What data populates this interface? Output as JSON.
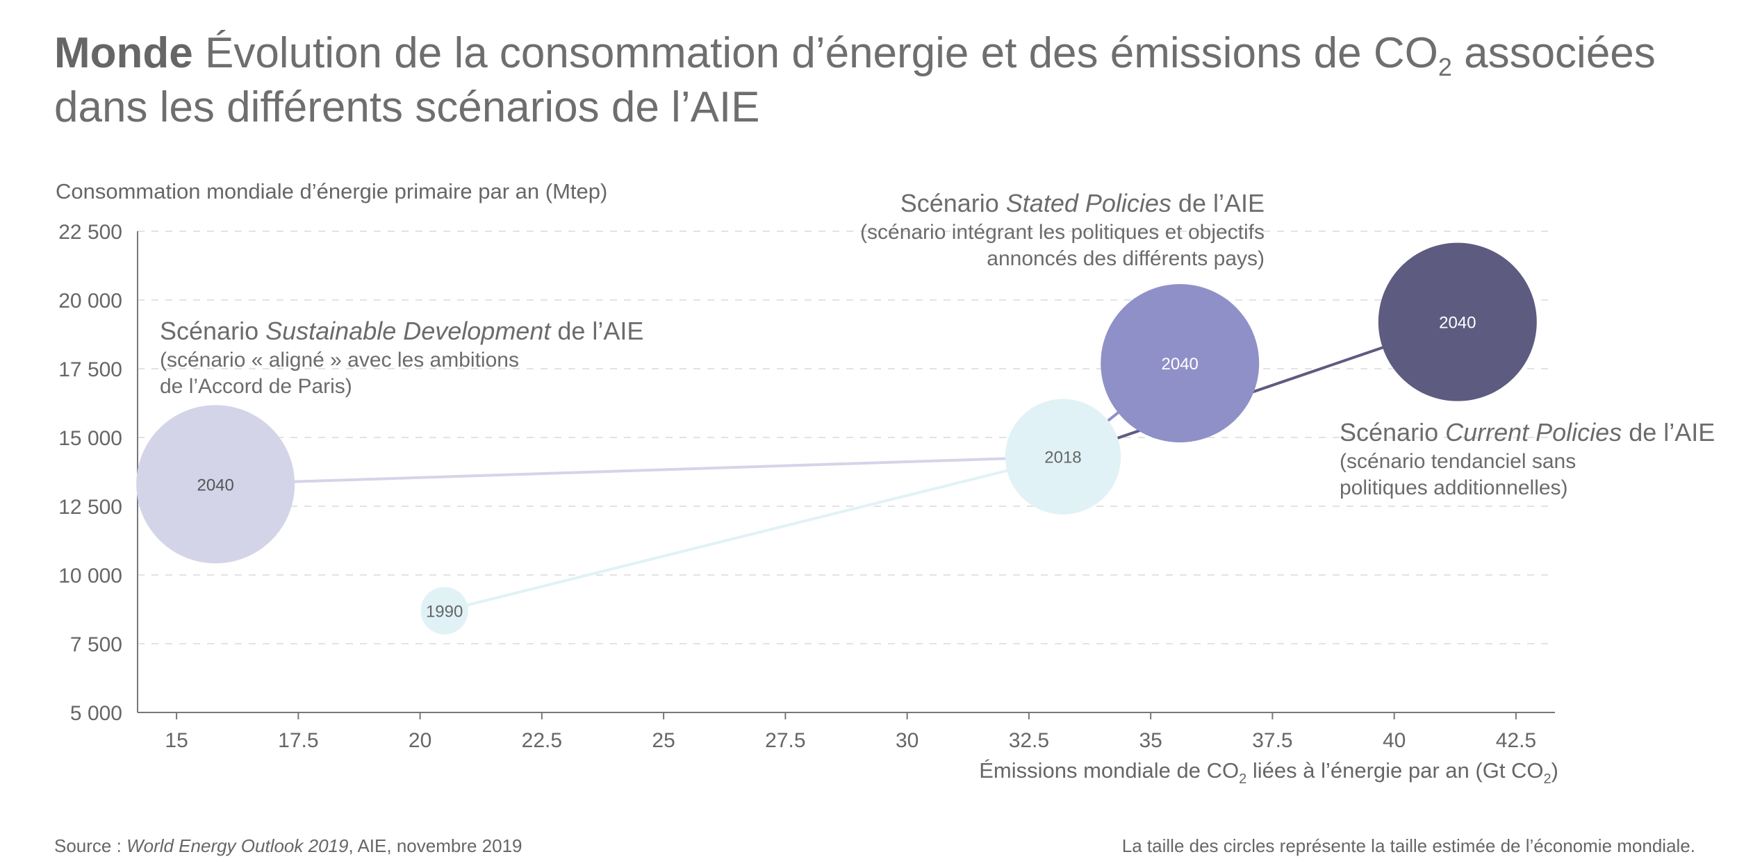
{
  "title": {
    "bold": "Monde",
    "text_before_sub": " Évolution de la consommation d’énergie et des émissions de CO",
    "sub": "2",
    "text_after_sub": " associées dans les différents scénarios de l’AIE"
  },
  "footer": {
    "source_prefix": "Source : ",
    "source_italic": "World Energy Outlook 2019",
    "source_suffix": ", AIE, novembre 2019",
    "note": "La taille des circles représente la taille estimée de l’économie mondiale."
  },
  "annotations": {
    "sustainable": {
      "prefix": "Scénario ",
      "italic": "Sustainable Development",
      "suffix": " de l’AIE",
      "line1": "(scénario « aligné » avec les ambitions",
      "line2": "de l’Accord de Paris)"
    },
    "stated": {
      "prefix": "Scénario ",
      "italic": "Stated Policies",
      "suffix": " de l’AIE",
      "line1": "(scénario intégrant les politiques et objectifs",
      "line2": "annoncés des différents pays)"
    },
    "current": {
      "prefix": "Scénario ",
      "italic": "Current Policies",
      "suffix": " de l’AIE",
      "line1": "(scénario tendanciel sans",
      "line2": "politiques additionnelles)"
    }
  },
  "chart_data": {
    "type": "scatter",
    "ylabel": "Consommation mondiale d’énergie primaire par an (Mtep)",
    "xlabel_before_sub": "Émissions mondiale de CO",
    "xlabel_sub": "2",
    "xlabel_mid": " liées à l’énergie par an (Gt CO",
    "xlabel_sub2": "2",
    "xlabel_after": ")",
    "xlim": [
      14.2,
      43.3
    ],
    "ylim": [
      5000,
      22500
    ],
    "xticks": [
      "15",
      "17.5",
      "20",
      "22.5",
      "25",
      "27.5",
      "30",
      "32.5",
      "35",
      "37.5",
      "40",
      "42.5"
    ],
    "xtick_values": [
      15,
      17.5,
      20,
      22.5,
      25,
      27.5,
      30,
      32.5,
      35,
      37.5,
      40,
      42.5
    ],
    "yticks": [
      "5 000",
      "7 500",
      "10 000",
      "12 500",
      "15 000",
      "17 500",
      "20 000",
      "22 500"
    ],
    "ytick_values": [
      5000,
      7500,
      10000,
      12500,
      15000,
      17500,
      20000,
      22500
    ],
    "grid": "horizontal dashed",
    "points": [
      {
        "id": "p1990",
        "label": "1990",
        "x": 20.5,
        "y": 8700,
        "size": 0.3,
        "color": "#e1f2f6",
        "text_color": "#666666"
      },
      {
        "id": "p2018",
        "label": "2018",
        "x": 33.2,
        "y": 14300,
        "size": 0.73,
        "color": "#e1f2f6",
        "text_color": "#666666"
      },
      {
        "id": "sd2040",
        "label": "2040",
        "x": 15.8,
        "y": 13300,
        "size": 1.0,
        "color": "#d4d4e9",
        "text_color": "#555555"
      },
      {
        "id": "sp2040",
        "label": "2040",
        "x": 35.6,
        "y": 17700,
        "size": 1.0,
        "color": "#9090c8",
        "text_color": "#ffffff"
      },
      {
        "id": "cp2040",
        "label": "2040",
        "x": 41.3,
        "y": 19200,
        "size": 1.0,
        "color": "#5d5b80",
        "text_color": "#ffffff"
      }
    ],
    "connections": [
      {
        "from": "p1990",
        "to": "p2018",
        "color": "#e1f2f6"
      },
      {
        "from": "p2018",
        "to": "sd2040",
        "color": "#d4d4e9"
      },
      {
        "from": "p2018",
        "to": "sp2040",
        "color": "#9090c8"
      },
      {
        "from": "p2018",
        "to": "cp2040",
        "color": "#5d5b80"
      }
    ]
  }
}
